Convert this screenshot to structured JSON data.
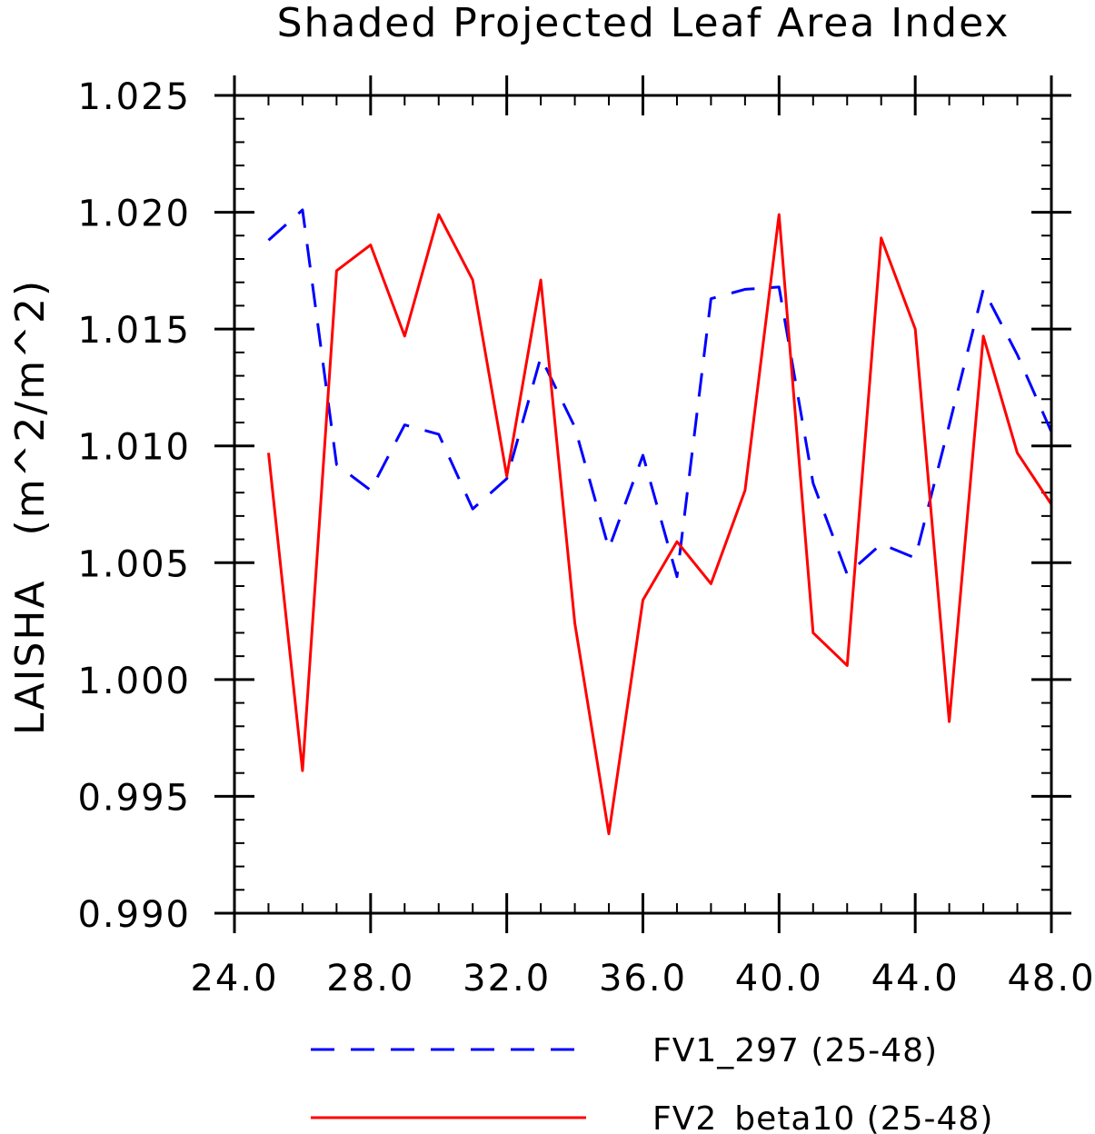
{
  "chart_data": {
    "type": "line",
    "title": "Shaded Projected Leaf Area Index",
    "ylabel": "LAISHA   (m^2/m^2)",
    "xlabel": "",
    "xlim": [
      24,
      48
    ],
    "ylim": [
      0.99,
      1.025
    ],
    "x_ticks": [
      24,
      28,
      32,
      36,
      40,
      44,
      48
    ],
    "x_tick_labels": [
      "24.0",
      "28.0",
      "32.0",
      "36.0",
      "40.0",
      "44.0",
      "48.0"
    ],
    "y_ticks": [
      0.99,
      0.995,
      1.0,
      1.005,
      1.01,
      1.015,
      1.02,
      1.025
    ],
    "y_tick_labels": [
      "0.990",
      "0.995",
      "1.000",
      "1.005",
      "1.010",
      "1.015",
      "1.020",
      "1.025"
    ],
    "legend_position": "bottom",
    "x": [
      25,
      26,
      27,
      28,
      29,
      30,
      31,
      32,
      33,
      34,
      35,
      36,
      37,
      38,
      39,
      40,
      41,
      42,
      43,
      44,
      45,
      46,
      47,
      48
    ],
    "series": [
      {
        "name": "FV1_297 (25-48)",
        "color": "#0000ff",
        "dash": "dashed",
        "values": [
          1.0188,
          1.0201,
          1.0092,
          1.0081,
          1.0109,
          1.0105,
          1.0073,
          1.0086,
          1.0138,
          1.0108,
          1.0056,
          1.0096,
          1.0044,
          1.0163,
          1.0167,
          1.0168,
          1.0084,
          1.0045,
          1.0058,
          1.0052,
          1.0109,
          1.0167,
          1.0139,
          1.0106
        ]
      },
      {
        "name": "FV2_beta10 (25-48)",
        "color": "#ff0000",
        "dash": "solid",
        "values": [
          1.0097,
          0.9961,
          1.0175,
          1.0186,
          1.0147,
          1.0199,
          1.0171,
          1.0087,
          1.0171,
          1.0024,
          0.9934,
          1.0034,
          1.0059,
          1.0041,
          1.0081,
          1.0199,
          1.002,
          1.0006,
          1.0189,
          1.015,
          0.9982,
          1.0147,
          1.0097,
          1.0075
        ]
      }
    ]
  }
}
